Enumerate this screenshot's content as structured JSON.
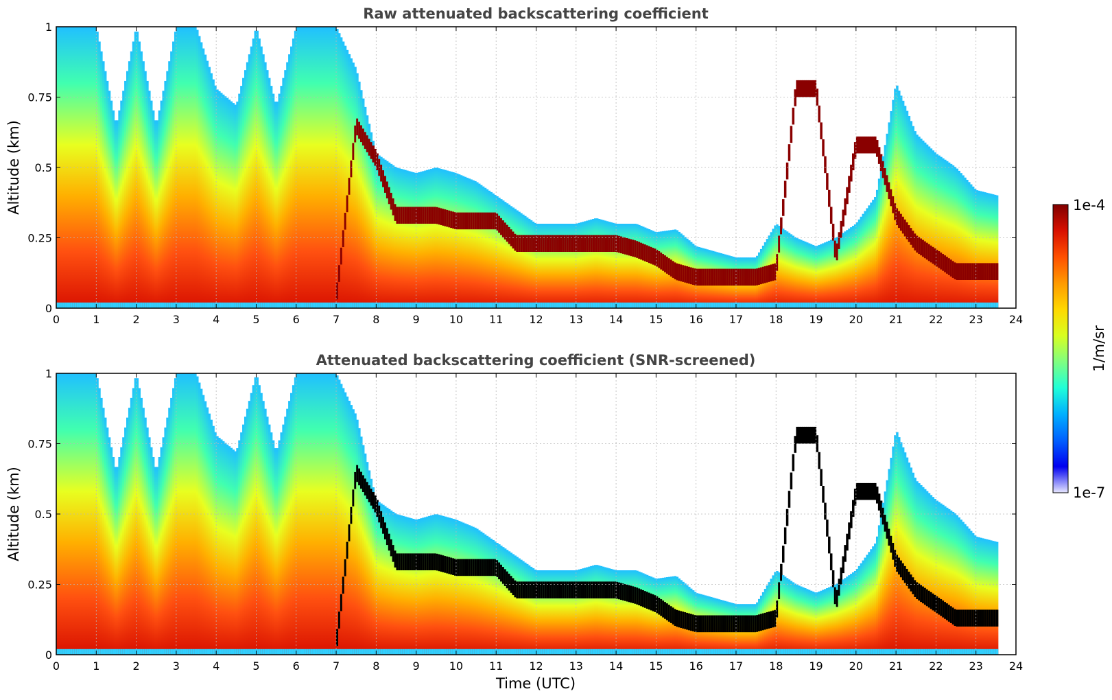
{
  "chart_data": [
    {
      "type": "heatmap",
      "title": "Raw attenuated backscattering coefficient",
      "xlabel": "",
      "ylabel": "Altitude (km)",
      "xlim": [
        0,
        24
      ],
      "ylim": [
        0,
        1
      ],
      "xticks": [
        "0",
        "1",
        "2",
        "3",
        "4",
        "5",
        "6",
        "7",
        "8",
        "9",
        "10",
        "11",
        "12",
        "13",
        "14",
        "15",
        "16",
        "17",
        "18",
        "19",
        "20",
        "21",
        "22",
        "23",
        "24"
      ],
      "yticks": [
        "0",
        "0.25",
        "0.5",
        "0.75",
        "1"
      ],
      "grid": true,
      "data_end_time": 23.55,
      "screened": false
    },
    {
      "type": "heatmap",
      "title": "Attenuated backscattering coefficient (SNR-screened)",
      "xlabel": "Time (UTC)",
      "ylabel": "Altitude (km)",
      "xlim": [
        0,
        24
      ],
      "ylim": [
        0,
        1
      ],
      "xticks": [
        "0",
        "1",
        "2",
        "3",
        "4",
        "5",
        "6",
        "7",
        "8",
        "9",
        "10",
        "11",
        "12",
        "13",
        "14",
        "15",
        "16",
        "17",
        "18",
        "19",
        "20",
        "21",
        "22",
        "23",
        "24"
      ],
      "yticks": [
        "0",
        "0.25",
        "0.5",
        "0.75",
        "1"
      ],
      "grid": true,
      "data_end_time": 23.55,
      "screened": true
    }
  ],
  "colorbar": {
    "label": "1/m/sr",
    "max_label": "1e-4",
    "min_label": "1e-7",
    "colors": [
      "#800000",
      "#d81000",
      "#ff5000",
      "#ff9a00",
      "#ffd800",
      "#d8ff20",
      "#80ff80",
      "#20ffd8",
      "#00b0ff",
      "#0060ff",
      "#0000f0",
      "#e8e8ff"
    ]
  },
  "profile": {
    "times": [
      0,
      1,
      1.5,
      2,
      2.5,
      3,
      3.5,
      4,
      4.5,
      5,
      5.5,
      6,
      6.5,
      7,
      7.5,
      8,
      8.5,
      9,
      9.5,
      10,
      10.5,
      11,
      11.5,
      12,
      12.5,
      13,
      13.5,
      14,
      14.5,
      15,
      15.5,
      16,
      16.5,
      17,
      17.5,
      18,
      18.5,
      19,
      19.5,
      20,
      20.5,
      21,
      21.5,
      22,
      22.5,
      23,
      23.55
    ],
    "layer_top_km": [
      1,
      1,
      0.65,
      1,
      0.65,
      1,
      1,
      0.78,
      0.72,
      1,
      0.72,
      1,
      1,
      1,
      0.85,
      0.55,
      0.5,
      0.48,
      0.5,
      0.48,
      0.45,
      0.4,
      0.35,
      0.3,
      0.3,
      0.3,
      0.32,
      0.3,
      0.3,
      0.27,
      0.28,
      0.22,
      0.2,
      0.18,
      0.18,
      0.3,
      0.25,
      0.22,
      0.25,
      0.3,
      0.4,
      0.8,
      0.62,
      0.55,
      0.5,
      0.42,
      0.4
    ],
    "cloud_base_km": [
      0,
      0,
      0,
      0,
      0,
      0,
      0,
      0,
      0,
      0,
      0,
      0,
      0,
      0,
      0.62,
      0.5,
      0.3,
      0.3,
      0.3,
      0.28,
      0.28,
      0.28,
      0.2,
      0.2,
      0.2,
      0.2,
      0.2,
      0.2,
      0.18,
      0.15,
      0.1,
      0.08,
      0.08,
      0.08,
      0.08,
      0.1,
      0.75,
      0.75,
      0.15,
      0.55,
      0.55,
      0.3,
      0.2,
      0.15,
      0.1,
      0.1,
      0.1
    ]
  }
}
